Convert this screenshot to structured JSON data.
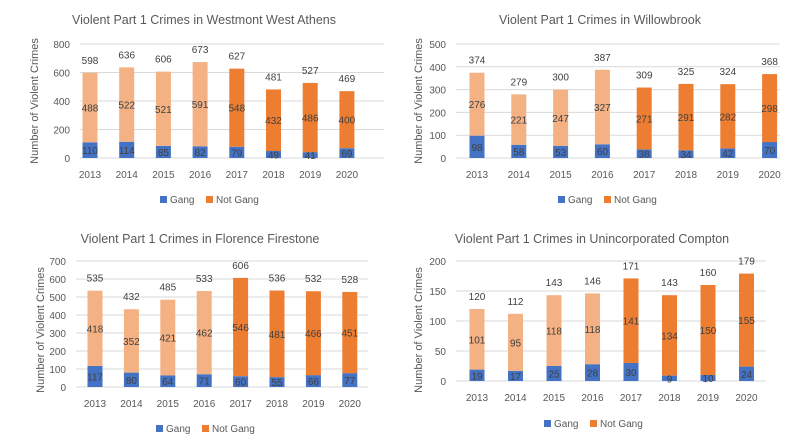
{
  "chart_data": [
    {
      "type": "bar",
      "stacked": true,
      "title": "Violent Part 1 Crimes in Westmont West Athens",
      "ylabel": "Number of Violent Crimes",
      "xlabel": "",
      "ylim": [
        0,
        800
      ],
      "yticks": [
        0,
        200,
        400,
        600,
        800
      ],
      "grid": true,
      "legend": "bottom",
      "categories": [
        "2013",
        "2014",
        "2015",
        "2016",
        "2017",
        "2018",
        "2019",
        "2020"
      ],
      "series": [
        {
          "name": "Gang",
          "values": [
            110,
            114,
            85,
            82,
            79,
            49,
            41,
            69
          ]
        },
        {
          "name": "Not Gang",
          "values": [
            488,
            522,
            521,
            591,
            548,
            432,
            486,
            400
          ]
        }
      ],
      "totals": [
        598,
        636,
        606,
        673,
        627,
        481,
        527,
        469
      ]
    },
    {
      "type": "bar",
      "stacked": true,
      "title": "Violent Part 1 Crimes in Willowbrook",
      "ylabel": "Number of Violent Crimes",
      "xlabel": "",
      "ylim": [
        0,
        500
      ],
      "yticks": [
        0,
        100,
        200,
        300,
        400,
        500
      ],
      "grid": true,
      "legend": "bottom",
      "categories": [
        "2013",
        "2014",
        "2015",
        "2016",
        "2017",
        "2018",
        "2019",
        "2020"
      ],
      "series": [
        {
          "name": "Gang",
          "values": [
            98,
            58,
            53,
            60,
            38,
            34,
            42,
            70
          ]
        },
        {
          "name": "Not Gang",
          "values": [
            276,
            221,
            247,
            327,
            271,
            291,
            282,
            298
          ]
        }
      ],
      "totals": [
        374,
        279,
        300,
        387,
        309,
        325,
        324,
        368
      ]
    },
    {
      "type": "bar",
      "stacked": true,
      "title": "Violent Part 1 Crimes in Florence Firestone",
      "ylabel": "Number of Violent Crimes",
      "xlabel": "",
      "ylim": [
        0,
        700
      ],
      "yticks": [
        0,
        100,
        200,
        300,
        400,
        500,
        600,
        700
      ],
      "grid": true,
      "legend": "bottom",
      "categories": [
        "2013",
        "2014",
        "2015",
        "2016",
        "2017",
        "2018",
        "2019",
        "2020"
      ],
      "series": [
        {
          "name": "Gang",
          "values": [
            117,
            80,
            64,
            71,
            60,
            55,
            66,
            77
          ]
        },
        {
          "name": "Not Gang",
          "values": [
            418,
            352,
            421,
            462,
            546,
            481,
            466,
            451
          ]
        }
      ],
      "totals": [
        535,
        432,
        485,
        533,
        606,
        536,
        532,
        528
      ]
    },
    {
      "type": "bar",
      "stacked": true,
      "title": "Violent Part 1 Crimes in Unincorporated Compton",
      "ylabel": "Number of Violent Crimes",
      "xlabel": "",
      "ylim": [
        0,
        200
      ],
      "yticks": [
        0,
        50,
        100,
        150,
        200
      ],
      "grid": true,
      "legend": "bottom",
      "categories": [
        "2013",
        "2014",
        "2015",
        "2016",
        "2017",
        "2018",
        "2019",
        "2020"
      ],
      "series": [
        {
          "name": "Gang",
          "values": [
            19,
            17,
            25,
            28,
            30,
            9,
            10,
            24
          ]
        },
        {
          "name": "Not Gang",
          "values": [
            101,
            95,
            118,
            118,
            141,
            134,
            150,
            155
          ]
        }
      ],
      "totals": [
        120,
        112,
        143,
        146,
        171,
        143,
        160,
        179
      ]
    }
  ],
  "colors": {
    "gang": "#4472C4",
    "not_gang": "#ED7D31",
    "not_gang_faded": "#F4B183",
    "faded_years": [
      "2013",
      "2014",
      "2015",
      "2016"
    ],
    "text": "#404040",
    "axis_text": "#595959",
    "grid": "#D9D9D9"
  }
}
